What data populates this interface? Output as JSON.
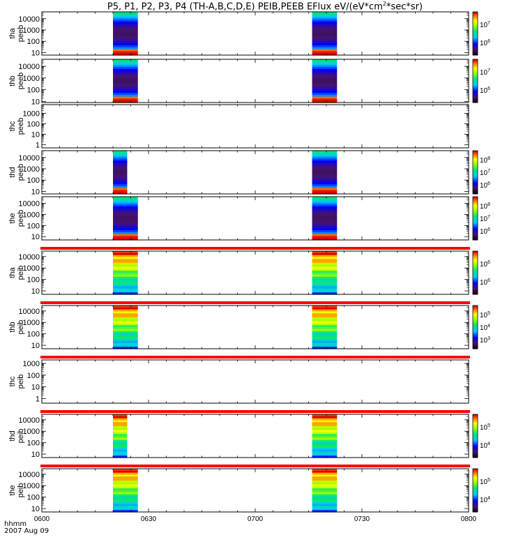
{
  "title": {
    "pre": "P5, P1, P2, P3, P4 (TH-A,B,C,D,E) PEIB,PEEB EFlux eV/(eV*cm",
    "sup": "2",
    "post": "*sec*sr)"
  },
  "footer": {
    "label": "hhmm",
    "date": "2007 Aug 09"
  },
  "chart_data": {
    "type": "heatmap",
    "title": "P5, P1, P2, P3, P4 (TH-A,B,C,D,E) PEIB,PEEB EFlux eV/(eV*cm2*sec*sr)",
    "x_ticks": [
      "0600",
      "0630",
      "0700",
      "0730",
      "0800"
    ],
    "x_range": [
      "0600",
      "0800"
    ],
    "date": "2007 Aug 09",
    "panels": [
      {
        "probe": "tha",
        "product": "peeb",
        "y_ticks": [
          "10000",
          "1000",
          "100",
          "10"
        ],
        "ylim": [
          6,
          40000
        ],
        "log": true,
        "cbar_ticks": [
          "10^7",
          "10^6"
        ],
        "cbar_range": [
          5.0,
          7.7
        ],
        "burst_intervals": [
          [
            "0620",
            "0627"
          ],
          [
            "0716",
            "0723"
          ]
        ]
      },
      {
        "probe": "thb",
        "product": "peeb",
        "y_ticks": [
          "10000",
          "1000",
          "100",
          "10"
        ],
        "ylim": [
          8,
          40000
        ],
        "log": true,
        "cbar_ticks": [
          "10^7",
          "10^6"
        ],
        "cbar_range": [
          5.4,
          7.5
        ],
        "burst_intervals": [
          [
            "0620",
            "0627"
          ],
          [
            "0716",
            "0723"
          ]
        ]
      },
      {
        "probe": "thc",
        "product": "peeb",
        "y_ticks": [
          "1000",
          "100",
          "10",
          "1"
        ],
        "ylim": [
          0.5,
          7000
        ],
        "log": true,
        "cbar_ticks": [],
        "cbar_range": null,
        "burst_intervals": []
      },
      {
        "probe": "thd",
        "product": "peeb",
        "y_ticks": [
          "10000",
          "1000",
          "100",
          "10"
        ],
        "ylim": [
          6,
          40000
        ],
        "log": true,
        "cbar_ticks": [
          "10^8",
          "10^7",
          "10^6"
        ],
        "cbar_range": [
          5.8,
          8.4
        ],
        "burst_intervals": [
          [
            "0620",
            "0624"
          ],
          [
            "0716",
            "0723"
          ]
        ]
      },
      {
        "probe": "the",
        "product": "peeb",
        "y_ticks": [
          "10000",
          "1000",
          "100",
          "10"
        ],
        "ylim": [
          5,
          40000
        ],
        "log": true,
        "cbar_ticks": [
          "10^8",
          "10^7",
          "10^6"
        ],
        "cbar_range": [
          5.8,
          8.4
        ],
        "burst_intervals": [
          [
            "0620",
            "0627"
          ],
          [
            "0716",
            "0723"
          ]
        ]
      },
      {
        "probe": "tha",
        "product": "peib",
        "y_ticks": [
          "10000",
          "1000",
          "100",
          "10"
        ],
        "ylim": [
          5,
          30000
        ],
        "log": true,
        "cbar_ticks": [
          "10^6",
          "10^6"
        ],
        "cbar_range": [
          5.4,
          6.6
        ],
        "burst_intervals": [
          [
            "0620",
            "0627"
          ],
          [
            "0716",
            "0723"
          ]
        ]
      },
      {
        "probe": "thb",
        "product": "peib",
        "y_ticks": [
          "10000",
          "1000",
          "100",
          "10"
        ],
        "ylim": [
          5,
          30000
        ],
        "log": true,
        "cbar_ticks": [
          "10^5",
          "10^4",
          "10^3"
        ],
        "cbar_range": [
          2.6,
          5.4
        ],
        "burst_intervals": [
          [
            "0620",
            "0627"
          ],
          [
            "0716",
            "0723"
          ]
        ]
      },
      {
        "probe": "thc",
        "product": "peib",
        "y_ticks": [
          "1000",
          "100",
          "10",
          "1"
        ],
        "ylim": [
          0.4,
          2000
        ],
        "log": true,
        "cbar_ticks": [],
        "cbar_range": null,
        "burst_intervals": []
      },
      {
        "probe": "thd",
        "product": "peib",
        "y_ticks": [
          "10000",
          "1000",
          "100",
          "10"
        ],
        "ylim": [
          5,
          30000
        ],
        "log": true,
        "cbar_ticks": [
          "10^5",
          "10^4"
        ],
        "cbar_range": [
          3.5,
          5.5
        ],
        "burst_intervals": [
          [
            "0620",
            "0624"
          ],
          [
            "0716",
            "0723"
          ]
        ]
      },
      {
        "probe": "the",
        "product": "peib",
        "y_ticks": [
          "10000",
          "1000",
          "100",
          "10"
        ],
        "ylim": [
          5,
          30000
        ],
        "log": true,
        "cbar_ticks": [
          "10^5",
          "10^4"
        ],
        "cbar_range": [
          3.5,
          5.5
        ],
        "burst_intervals": [
          [
            "0620",
            "0627"
          ],
          [
            "0716",
            "0723"
          ]
        ]
      }
    ]
  }
}
